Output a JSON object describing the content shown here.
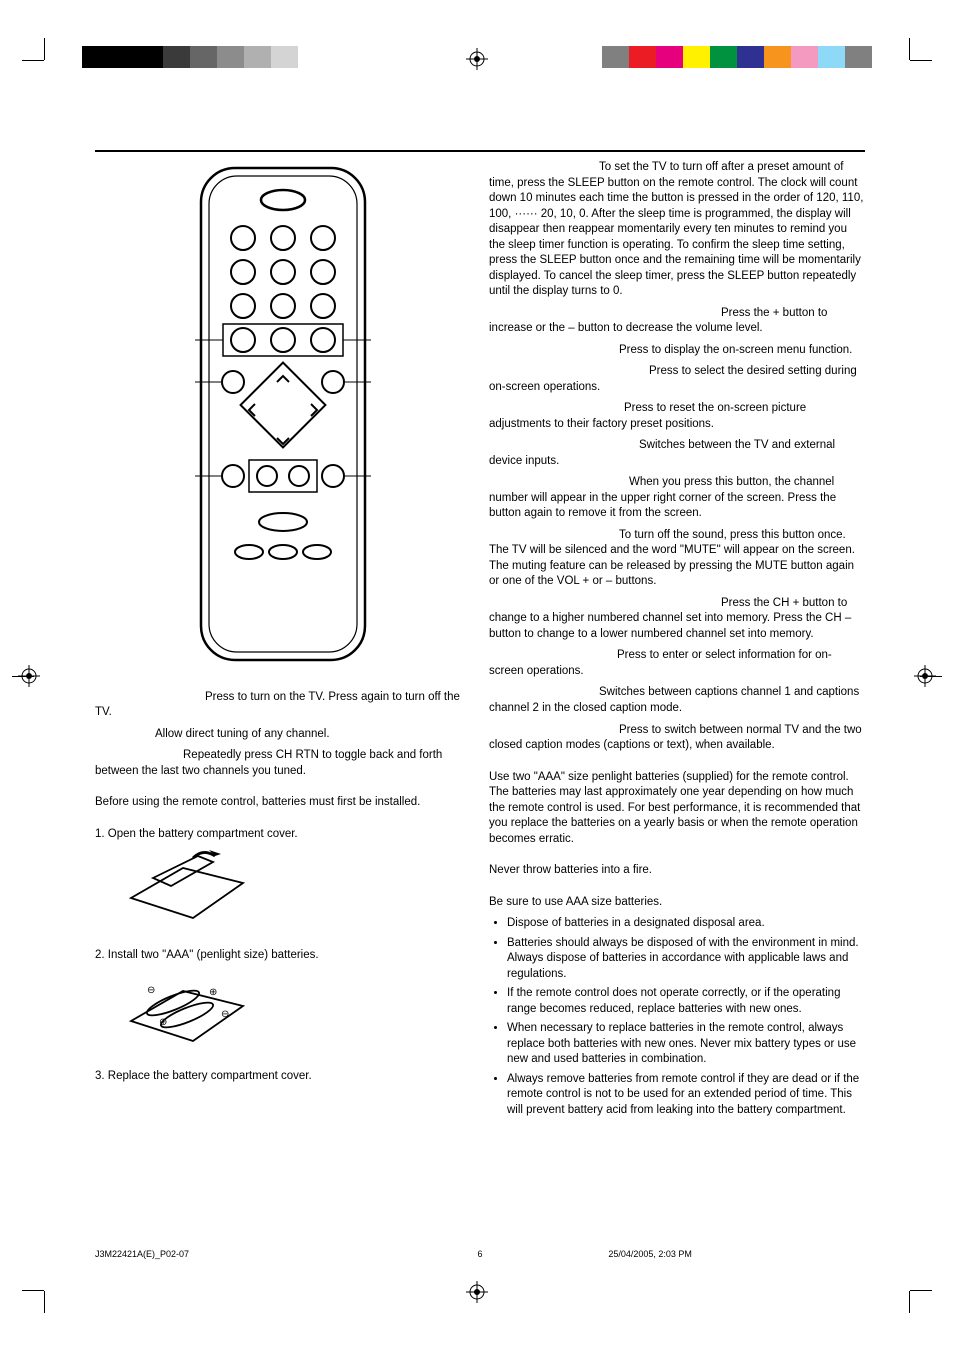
{
  "greyscale_bar": [
    "#000000",
    "#000000",
    "#000000",
    "#3a3a3a",
    "#666666",
    "#8c8c8c",
    "#b0b0b0",
    "#d4d4d4"
  ],
  "color_bar": [
    "#808080",
    "#ec1c24",
    "#e6007e",
    "#fff100",
    "#00923f",
    "#2e3192",
    "#f7941e",
    "#f49ac1",
    "#8ed8f8",
    "#808080"
  ],
  "left": {
    "power_text": "Press to turn on the TV. Press again to turn off the TV.",
    "direct_tune": "Allow direct tuning of any channel.",
    "ch_rtn": "Repeatedly press CH RTN to toggle back and forth between the last two channels you tuned.",
    "before_batteries": "Before using the remote control, batteries must first be installed.",
    "step1": "1. Open the battery compartment cover.",
    "step2": "2. Install two \"AAA\" (penlight size) batteries.",
    "step3": "3. Replace the battery compartment cover."
  },
  "right": {
    "sleep": "To set the TV to turn off after a preset amount of time, press the SLEEP button on the remote control. The clock will count down 10 minutes each time the button is pressed in the order of 120, 110, 100, ······ 20, 10, 0. After the sleep time is programmed, the display will disappear then reappear momentarily every ten minutes to remind you the sleep timer function is operating. To confirm the sleep time setting, press the SLEEP button once and the remaining time will be momentarily displayed. To cancel the sleep timer, press the SLEEP button repeatedly until the display turns to 0.",
    "vol": "Press the + button to increase or the – button to decrease the volume level.",
    "menu": "Press to display the on-screen menu function.",
    "select": "Press to select the desired setting during on-screen operations.",
    "reset": "Press to reset the on-screen picture adjustments to their factory preset positions.",
    "input": "Switches between the TV and external device inputs.",
    "display_btn": "When you press this button, the channel number will appear in the upper right corner of the screen. Press the button again to remove it from the screen.",
    "mute": "To turn off the sound, press this button once. The TV will be silenced and the word \"MUTE\" will appear on the screen. The muting feature can be released by pressing the MUTE button again or one of the VOL + or – buttons.",
    "ch": "Press the CH + button to change to a higher numbered channel set into memory. Press the CH – button to change to a lower numbered channel set into memory.",
    "enter": "Press to enter or select information for on-screen operations.",
    "cc_ch": "Switches between captions channel 1 and captions channel 2 in the closed caption mode.",
    "caption": "Press to switch between normal TV and the two closed caption modes (captions or text), when available.",
    "batteries_intro": "Use two \"AAA\" size penlight batteries (supplied) for the remote control. The batteries may last approximately one year depending on how much the remote control is used. For best performance, it is recommended that you replace the batteries on a yearly basis or when the remote operation becomes erratic.",
    "fire_warning": "Never throw batteries into a fire.",
    "aaa_note": "Be sure to use AAA size batteries.",
    "bullets": [
      "Dispose of batteries in a designated disposal area.",
      "Batteries should always be disposed of with the environment in mind. Always dispose of batteries in accordance with applicable laws and regulations.",
      "If the remote control does not operate correctly, or if the operating range becomes reduced, replace batteries with new ones.",
      "When necessary to replace batteries in the remote control, always replace both batteries with new ones. Never mix battery types or use new and used batteries in combination.",
      "Always remove batteries from remote control if they are dead or if the remote control is not to be used for an extended period of time. This will prevent battery acid from leaking into the battery compartment."
    ]
  },
  "footer": {
    "doc": "J3M22421A(E)_P02-07",
    "page": "6",
    "date": "25/04/2005, 2:03 PM"
  }
}
